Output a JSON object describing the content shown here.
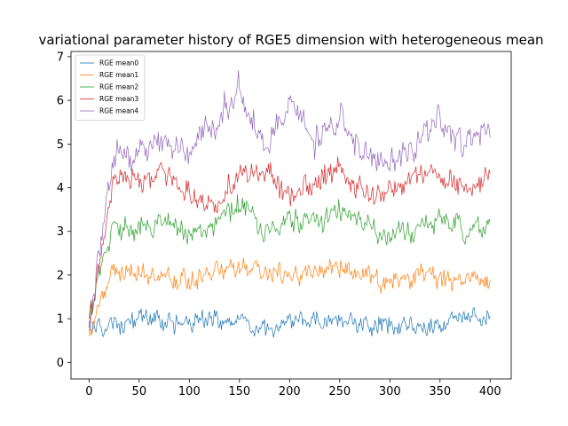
{
  "chart_data": {
    "type": "line",
    "title": "variational parameter history of RGE5 dimension with heterogeneous mean",
    "xlabel": "",
    "ylabel": "",
    "xlim": [
      -18,
      421
    ],
    "ylim": [
      -0.38,
      7.12
    ],
    "xticks": [
      0,
      50,
      100,
      150,
      200,
      250,
      300,
      350,
      400
    ],
    "yticks": [
      0,
      1,
      2,
      3,
      4,
      5,
      6,
      7
    ],
    "grid": false,
    "legend_position": "upper-left",
    "series": [
      {
        "name": "RGE mean0",
        "color": "#1f77b4",
        "x": [
          0,
          25,
          50,
          75,
          100,
          125,
          150,
          175,
          200,
          225,
          250,
          275,
          300,
          325,
          350,
          375,
          400
        ],
        "values": [
          0.95,
          0.9,
          1.0,
          0.92,
          0.88,
          0.95,
          0.95,
          0.7,
          0.95,
          0.95,
          1.0,
          0.85,
          0.9,
          0.8,
          0.9,
          1.0,
          1.0
        ]
      },
      {
        "name": "RGE mean1",
        "color": "#ff7f0e",
        "x": [
          0,
          25,
          50,
          75,
          100,
          125,
          150,
          175,
          200,
          225,
          250,
          275,
          300,
          325,
          350,
          375,
          400
        ],
        "values": [
          0.6,
          2.1,
          2.0,
          2.0,
          1.9,
          2.1,
          2.2,
          2.0,
          2.0,
          2.05,
          2.2,
          2.0,
          1.85,
          2.0,
          2.0,
          1.9,
          2.0
        ]
      },
      {
        "name": "RGE mean2",
        "color": "#2ca02c",
        "x": [
          0,
          25,
          50,
          75,
          100,
          125,
          150,
          175,
          200,
          225,
          250,
          275,
          300,
          325,
          350,
          375,
          400
        ],
        "values": [
          1.0,
          3.2,
          3.0,
          3.2,
          2.9,
          3.1,
          3.6,
          3.0,
          3.3,
          3.2,
          3.5,
          3.1,
          2.8,
          3.0,
          3.3,
          3.0,
          3.2
        ]
      },
      {
        "name": "RGE mean3",
        "color": "#d62728",
        "x": [
          0,
          25,
          50,
          75,
          100,
          125,
          150,
          175,
          200,
          225,
          250,
          275,
          300,
          325,
          350,
          375,
          400
        ],
        "values": [
          0.8,
          4.3,
          4.2,
          4.3,
          3.8,
          3.6,
          4.3,
          4.4,
          3.7,
          4.1,
          4.4,
          3.9,
          3.8,
          4.4,
          4.3,
          4.0,
          4.4
        ]
      },
      {
        "name": "RGE mean4",
        "color": "#9467bd",
        "x": [
          0,
          25,
          50,
          75,
          100,
          125,
          150,
          175,
          200,
          225,
          250,
          275,
          300,
          325,
          350,
          375,
          400
        ],
        "values": [
          0.75,
          4.8,
          4.8,
          5.2,
          4.9,
          5.4,
          6.3,
          5.1,
          5.8,
          5.0,
          5.6,
          4.7,
          4.5,
          5.0,
          5.5,
          5.0,
          5.3
        ]
      }
    ]
  }
}
